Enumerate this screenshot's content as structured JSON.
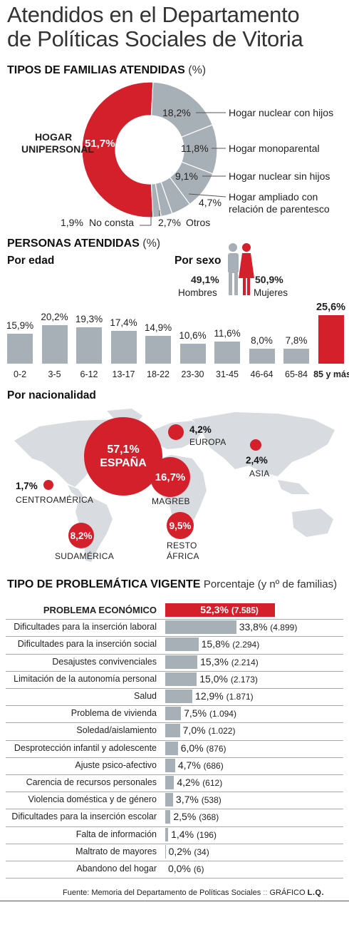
{
  "title_line1": "Atendidos en el Departamento",
  "title_line2": "de Políticas Sociales de Vitoria",
  "families": {
    "title": "TIPOS DE FAMILIAS ATENDIDAS",
    "unit": "(%)",
    "highlight_label_1": "HOGAR",
    "highlight_label_2": "UNIPERSONAL",
    "slices": [
      {
        "label": "Hogar unipersonal",
        "pct_text": "51,7%",
        "value": 51.7,
        "color": "#d4202a"
      },
      {
        "label": "Hogar nuclear con hijos",
        "pct_text": "18,2%",
        "value": 18.2,
        "color": "#a8b0b7"
      },
      {
        "label": "Hogar monoparental",
        "pct_text": "11,8%",
        "value": 11.8,
        "color": "#a8b0b7"
      },
      {
        "label": "Hogar nuclear sin hijos",
        "pct_text": "9,1%",
        "value": 9.1,
        "color": "#a8b0b7"
      },
      {
        "label_1": "Hogar ampliado con",
        "label_2": "relación de parentesco",
        "pct_text": "4,7%",
        "value": 4.7,
        "color": "#a8b0b7"
      },
      {
        "label": "Otros",
        "pct_text": "2,7%",
        "value": 2.7,
        "color": "#a8b0b7"
      },
      {
        "label": "No consta",
        "pct_text": "1,9%",
        "value": 1.9,
        "color": "#a8b0b7"
      }
    ]
  },
  "persons": {
    "title": "PERSONAS ATENDIDAS",
    "unit": "(%)",
    "by_age_title": "Por edad",
    "by_sex_title": "Por sexo",
    "men_pct": "49,1%",
    "men_label": "Hombres",
    "women_pct": "50,9%",
    "women_label": "Mujeres"
  },
  "nationality": {
    "title": "Por nacionalidad",
    "espana_pct": "57,1%",
    "espana_label": "ESPAÑA",
    "europa_pct": "4,2%",
    "europa_label": "EUROPA",
    "asia_pct": "2,4%",
    "asia_label": "ASIA",
    "magreb_pct": "16,7%",
    "magreb_label": "MAGREB",
    "centro_pct": "1,7%",
    "centro_label": "CENTROAMÉRICA",
    "sud_pct": "8,2%",
    "sud_label": "SUDAMÉRICA",
    "resto_pct": "9,5%",
    "resto_label_1": "RESTO",
    "resto_label_2": "ÁFRICA"
  },
  "problems": {
    "title": "TIPO DE PROBLEMÁTICA VIGENTE",
    "unit": "Porcentaje (y nº de familias)"
  },
  "source_text": "Fuente: Memoria del Departamento de Políticas Sociales",
  "credit_text": "GRÁFICO",
  "credit_initials": "L.Q.",
  "colors": {
    "red": "#d4202a",
    "grey": "#a8b0b7",
    "map": "#d8dce0"
  },
  "chart_data": [
    {
      "type": "pie",
      "title": "TIPOS DE FAMILIAS ATENDIDAS (%)",
      "categories": [
        "Hogar unipersonal",
        "Hogar nuclear con hijos",
        "Hogar monoparental",
        "Hogar nuclear sin hijos",
        "Hogar ampliado con relación de parentesco",
        "Otros",
        "No consta"
      ],
      "values": [
        51.7,
        18.2,
        11.8,
        9.1,
        4.7,
        2.7,
        1.9
      ]
    },
    {
      "type": "bar",
      "title": "Por edad",
      "categories": [
        "0-2",
        "3-5",
        "6-12",
        "13-17",
        "18-22",
        "23-30",
        "31-45",
        "46-64",
        "65-84",
        "85 y más"
      ],
      "values": [
        15.9,
        20.2,
        19.3,
        17.4,
        14.9,
        10.6,
        11.6,
        8.0,
        7.8,
        25.6
      ],
      "labels": [
        "15,9%",
        "20,2%",
        "19,3%",
        "17,4%",
        "14,9%",
        "10,6%",
        "11,6%",
        "8,0%",
        "7,8%",
        "25,6%"
      ],
      "highlight": "85 y más"
    },
    {
      "type": "pie",
      "title": "Por sexo",
      "categories": [
        "Hombres",
        "Mujeres"
      ],
      "values": [
        49.1,
        50.9
      ]
    },
    {
      "type": "scatter",
      "title": "Por nacionalidad",
      "categories": [
        "ESPAÑA",
        "EUROPA",
        "ASIA",
        "MAGREB",
        "CENTROAMÉRICA",
        "SUDAMÉRICA",
        "RESTO ÁFRICA"
      ],
      "values": [
        57.1,
        4.2,
        2.4,
        16.7,
        1.7,
        8.2,
        9.5
      ]
    },
    {
      "type": "bar",
      "title": "TIPO DE PROBLEMÁTICA VIGENTE",
      "categories": [
        "PROBLEMA ECONÓMICO",
        "Dificultades para la inserción laboral",
        "Dificultades para la inserción social",
        "Desajustes convivenciales",
        "Limitación de la autonomía personal",
        "Salud",
        "Problema de vivienda",
        "Soledad/aislamiento",
        "Desprotección infantil y adolescente",
        "Ajuste psico-afectivo",
        "Carencia de recursos personales",
        "Violencia doméstica y de género",
        "Dificultades para la inserción escolar",
        "Falta de información",
        "Maltrato de mayores",
        "Abandono del hogar"
      ],
      "values": [
        52.3,
        33.8,
        15.8,
        15.3,
        15.0,
        12.9,
        7.5,
        7.0,
        6.0,
        4.7,
        4.2,
        3.7,
        2.5,
        1.4,
        0.2,
        0.0
      ],
      "pct_labels": [
        "52,3%",
        "33,8%",
        "15,8%",
        "15,3%",
        "15,0%",
        "12,9%",
        "7,5%",
        "7,0%",
        "6,0%",
        "4,7%",
        "4,2%",
        "3,7%",
        "2,5%",
        "1,4%",
        "0,2%",
        "0,0%"
      ],
      "counts": [
        "(7.585)",
        "(4.899)",
        "(2.294)",
        "(2.214)",
        "(2.173)",
        "(1.871)",
        "(1.094)",
        "(1.022)",
        "(876)",
        "(686)",
        "(612)",
        "(538)",
        "(368)",
        "(196)",
        "(34)",
        "(6)"
      ]
    }
  ]
}
